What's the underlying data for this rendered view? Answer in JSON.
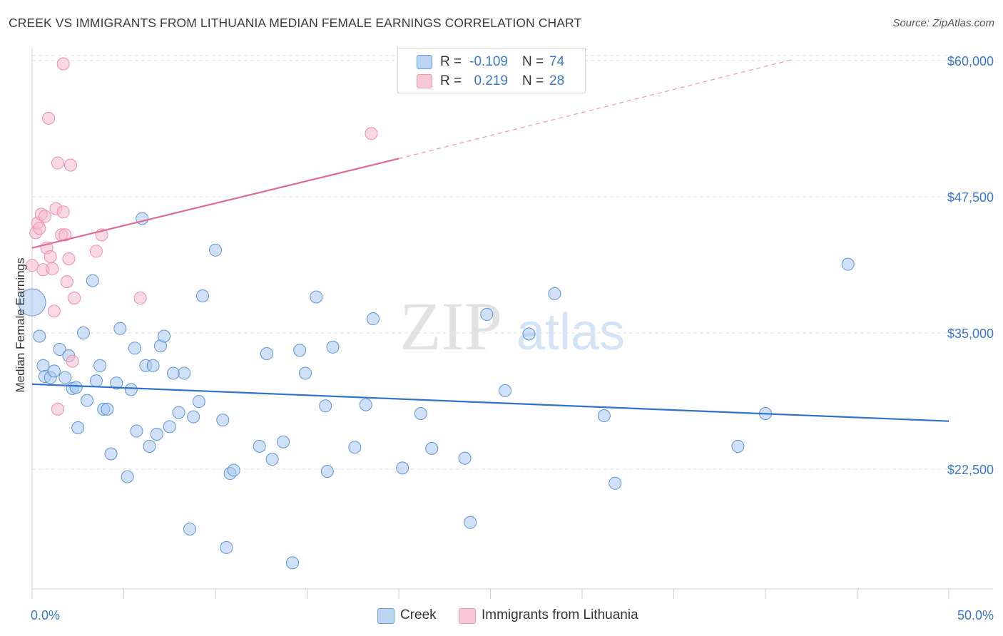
{
  "title": "CREEK VS IMMIGRANTS FROM LITHUANIA MEDIAN FEMALE EARNINGS CORRELATION CHART",
  "source": "Source: ZipAtlas.com",
  "watermark": {
    "zip": "ZIP",
    "atlas": "atlas"
  },
  "legend_top": [
    {
      "r_label": "R =",
      "r_value": "-0.109",
      "n_label": "N =",
      "n_value": "74",
      "color": "#a9c8f0"
    },
    {
      "r_label": "R =",
      "r_value": "0.219",
      "n_label": "N =",
      "n_value": "28",
      "color": "#f7b9cc"
    }
  ],
  "legend_bottom": [
    {
      "label": "Creek",
      "color": "#a9c8f0"
    },
    {
      "label": "Immigrants from Lithuania",
      "color": "#f7b9cc"
    }
  ],
  "chart_data": {
    "type": "scatter",
    "title": "CREEK VS IMMIGRANTS FROM LITHUANIA MEDIAN FEMALE EARNINGS CORRELATION CHART",
    "xlabel": "",
    "ylabel": "Median Female Earnings",
    "xlim": [
      0,
      50
    ],
    "ylim": [
      11500,
      61500
    ],
    "x_tick_labels": [
      "0.0%",
      "50.0%"
    ],
    "y_ticks": [
      22500,
      35000,
      47500,
      60000
    ],
    "y_tick_labels": [
      "$22,500",
      "$35,000",
      "$47,500",
      "$60,000"
    ],
    "grid": true,
    "legend_position": "top-center",
    "series": [
      {
        "name": "Creek",
        "color": "#a9c8f0",
        "stroke": "#5d94d6",
        "trend_color": "#2f72cc",
        "trend": {
          "x0": 0,
          "y0": 30300,
          "x1": 50,
          "y1": 26900
        },
        "points": [
          [
            0.0,
            37800
          ],
          [
            0.4,
            34700
          ],
          [
            0.6,
            32000
          ],
          [
            0.7,
            31000
          ],
          [
            1.0,
            30900
          ],
          [
            1.2,
            31500
          ],
          [
            1.5,
            33500
          ],
          [
            1.8,
            30900
          ],
          [
            2.0,
            32900
          ],
          [
            2.2,
            29900
          ],
          [
            2.4,
            30000
          ],
          [
            2.5,
            26300
          ],
          [
            2.8,
            35000
          ],
          [
            3.0,
            28800
          ],
          [
            3.3,
            39800
          ],
          [
            3.5,
            30600
          ],
          [
            3.7,
            32000
          ],
          [
            3.9,
            28000
          ],
          [
            4.1,
            28000
          ],
          [
            4.3,
            23900
          ],
          [
            4.6,
            30400
          ],
          [
            4.8,
            35400
          ],
          [
            5.2,
            21800
          ],
          [
            5.4,
            29800
          ],
          [
            5.6,
            33600
          ],
          [
            5.7,
            26000
          ],
          [
            6.0,
            45500
          ],
          [
            6.2,
            32000
          ],
          [
            6.4,
            24600
          ],
          [
            6.6,
            32000
          ],
          [
            6.8,
            25700
          ],
          [
            7.0,
            33800
          ],
          [
            7.2,
            34700
          ],
          [
            7.5,
            26400
          ],
          [
            7.7,
            31300
          ],
          [
            8.0,
            27700
          ],
          [
            8.3,
            31300
          ],
          [
            8.6,
            17000
          ],
          [
            8.8,
            27300
          ],
          [
            9.1,
            28700
          ],
          [
            9.3,
            38400
          ],
          [
            10.0,
            42600
          ],
          [
            10.4,
            27000
          ],
          [
            10.6,
            15300
          ],
          [
            10.8,
            22100
          ],
          [
            11.0,
            22400
          ],
          [
            12.4,
            24600
          ],
          [
            12.8,
            33100
          ],
          [
            13.1,
            23400
          ],
          [
            13.7,
            25000
          ],
          [
            14.2,
            13900
          ],
          [
            14.6,
            33400
          ],
          [
            14.9,
            31300
          ],
          [
            15.5,
            38300
          ],
          [
            16.0,
            28300
          ],
          [
            16.1,
            22300
          ],
          [
            16.4,
            33700
          ],
          [
            17.6,
            24500
          ],
          [
            18.2,
            28400
          ],
          [
            18.6,
            36300
          ],
          [
            20.2,
            22600
          ],
          [
            21.2,
            27600
          ],
          [
            21.8,
            24400
          ],
          [
            23.6,
            23500
          ],
          [
            23.9,
            17600
          ],
          [
            24.8,
            36700
          ],
          [
            25.8,
            29700
          ],
          [
            27.1,
            34900
          ],
          [
            28.5,
            38600
          ],
          [
            31.2,
            27400
          ],
          [
            31.8,
            21200
          ],
          [
            38.5,
            24600
          ],
          [
            40.0,
            27600
          ],
          [
            44.5,
            41300
          ]
        ]
      },
      {
        "name": "Immigrants from Lithuania",
        "color": "#f7b9cc",
        "stroke": "#ea8fab",
        "trend_color": "#e06b92",
        "trend": {
          "x0": 0,
          "y0": 42800,
          "x1": 20,
          "y1": 51000
        },
        "trend_extension": {
          "x0": 20,
          "y0": 51000,
          "x1": 41.5,
          "y1": 60100
        },
        "points": [
          [
            0.0,
            41200
          ],
          [
            0.2,
            44200
          ],
          [
            0.3,
            45100
          ],
          [
            0.4,
            44600
          ],
          [
            0.5,
            45900
          ],
          [
            0.6,
            40800
          ],
          [
            0.7,
            45700
          ],
          [
            0.8,
            42800
          ],
          [
            0.9,
            54700
          ],
          [
            1.0,
            42000
          ],
          [
            1.1,
            40900
          ],
          [
            1.2,
            37000
          ],
          [
            1.3,
            46400
          ],
          [
            1.4,
            28000
          ],
          [
            1.4,
            50600
          ],
          [
            1.6,
            44000
          ],
          [
            1.7,
            46100
          ],
          [
            1.8,
            44000
          ],
          [
            1.7,
            59700
          ],
          [
            1.9,
            39700
          ],
          [
            2.0,
            41800
          ],
          [
            2.1,
            50400
          ],
          [
            2.2,
            32400
          ],
          [
            2.3,
            38200
          ],
          [
            3.5,
            42500
          ],
          [
            3.8,
            44000
          ],
          [
            5.9,
            38200
          ],
          [
            18.5,
            53300
          ]
        ]
      }
    ]
  }
}
